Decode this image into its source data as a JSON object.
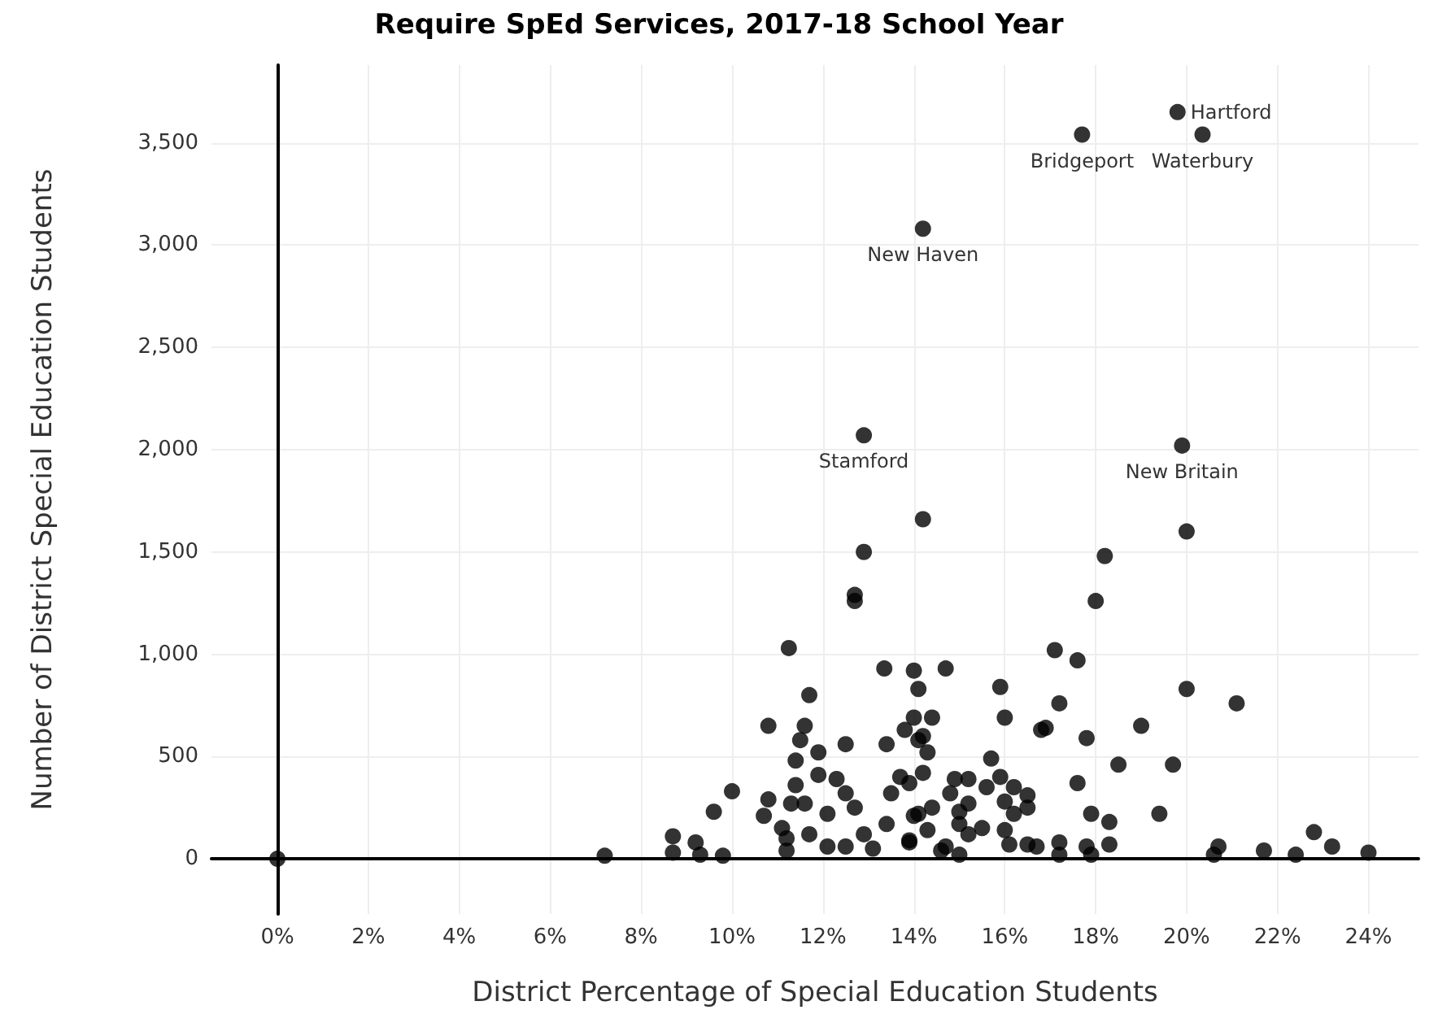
{
  "chart_data": {
    "type": "scatter",
    "title": "Require SpEd Services, 2017-18 School Year",
    "xlabel": "District Percentage of Special Education Students",
    "ylabel": "Number of District Special Education Students",
    "xlim": [
      -1.45,
      25.1
    ],
    "ylim": [
      -270,
      3880
    ],
    "xticks": [
      {
        "value": 0,
        "label": "0%"
      },
      {
        "value": 2,
        "label": "2%"
      },
      {
        "value": 4,
        "label": "4%"
      },
      {
        "value": 6,
        "label": "6%"
      },
      {
        "value": 8,
        "label": "8%"
      },
      {
        "value": 10,
        "label": "10%"
      },
      {
        "value": 12,
        "label": "12%"
      },
      {
        "value": 14,
        "label": "14%"
      },
      {
        "value": 16,
        "label": "16%"
      },
      {
        "value": 18,
        "label": "18%"
      },
      {
        "value": 20,
        "label": "20%"
      },
      {
        "value": 22,
        "label": "22%"
      },
      {
        "value": 24,
        "label": "24%"
      }
    ],
    "yticks": [
      0,
      500,
      {
        "value": 1000,
        "label": "1,000"
      },
      {
        "value": 1500,
        "label": "1,500"
      },
      {
        "value": 2000,
        "label": "2,000"
      },
      {
        "value": 2500,
        "label": "2,500"
      },
      {
        "value": 3000,
        "label": "3,000"
      },
      {
        "value": 3500,
        "label": "3,500"
      }
    ],
    "grid": true,
    "marker": "circle",
    "series": [
      {
        "color": "#000000",
        "x": [
          19.8,
          20.35,
          17.7,
          14.2,
          12.9,
          19.9,
          14.2,
          12.9,
          12.7,
          12.7,
          11.25,
          13.35,
          14.0,
          14.1,
          11.7,
          20.0,
          18.2,
          18.0,
          17.1,
          17.6,
          20.0,
          21.1,
          15.9,
          16.0,
          17.2,
          19.0,
          17.8,
          16.8,
          16.9,
          14.7,
          10.8,
          11.6,
          11.5,
          11.4,
          11.9,
          12.5,
          11.4,
          11.9,
          12.3,
          10.8,
          11.3,
          11.6,
          12.1,
          12.5,
          12.7,
          10.7,
          11.1,
          11.2,
          11.2,
          11.7,
          12.1,
          12.5,
          12.9,
          13.1,
          13.4,
          13.5,
          13.7,
          13.9,
          14.1,
          14.2,
          13.4,
          13.8,
          14.1,
          14.3,
          14.0,
          14.4,
          10.0,
          9.6,
          8.7,
          8.7,
          9.2,
          9.3,
          9.8,
          7.2,
          0,
          14.2,
          13.9,
          14.4,
          14.0,
          14.3,
          13.9,
          14.6,
          15.0,
          14.7,
          14.9,
          15.2,
          14.8,
          15.6,
          15.2,
          15.0,
          15.0,
          15.5,
          15.2,
          15.7,
          15.9,
          16.2,
          16.0,
          16.5,
          16.5,
          16.2,
          16.0,
          16.1,
          16.5,
          16.7,
          17.2,
          17.2,
          17.8,
          17.9,
          18.3,
          17.9,
          18.3,
          17.6,
          18.5,
          19.7,
          19.4,
          20.6,
          20.7,
          21.7,
          22.4,
          22.8,
          23.2,
          24.0
        ],
        "values": [
          3650,
          3540,
          3540,
          3080,
          2070,
          2020,
          1660,
          1500,
          1290,
          1260,
          1030,
          930,
          920,
          830,
          800,
          1600,
          1480,
          1260,
          1020,
          970,
          830,
          760,
          840,
          690,
          760,
          650,
          590,
          630,
          640,
          930,
          650,
          650,
          580,
          480,
          520,
          560,
          360,
          410,
          390,
          290,
          270,
          270,
          220,
          320,
          250,
          210,
          150,
          100,
          40,
          120,
          60,
          60,
          120,
          50,
          170,
          320,
          400,
          90,
          220,
          420,
          560,
          630,
          580,
          520,
          690,
          690,
          330,
          230,
          110,
          30,
          80,
          20,
          15,
          15,
          0,
          600,
          370,
          250,
          210,
          140,
          80,
          40,
          20,
          60,
          390,
          390,
          320,
          350,
          270,
          230,
          170,
          150,
          120,
          490,
          400,
          350,
          280,
          310,
          250,
          220,
          140,
          70,
          70,
          60,
          80,
          20,
          60,
          20,
          70,
          220,
          180,
          370,
          460,
          460,
          220,
          20,
          60,
          40,
          20,
          130,
          60,
          30
        ]
      }
    ],
    "annotations": [
      {
        "text": "Hartford",
        "x": 19.8,
        "y": 3650
      },
      {
        "text": "Bridgeport",
        "x": 17.7,
        "y": 3540
      },
      {
        "text": "Waterbury",
        "x": 20.35,
        "y": 3540
      },
      {
        "text": "New Haven",
        "x": 14.2,
        "y": 3080
      },
      {
        "text": "Stamford",
        "x": 12.9,
        "y": 2070
      },
      {
        "text": "New Britain",
        "x": 19.9,
        "y": 2020
      }
    ]
  }
}
